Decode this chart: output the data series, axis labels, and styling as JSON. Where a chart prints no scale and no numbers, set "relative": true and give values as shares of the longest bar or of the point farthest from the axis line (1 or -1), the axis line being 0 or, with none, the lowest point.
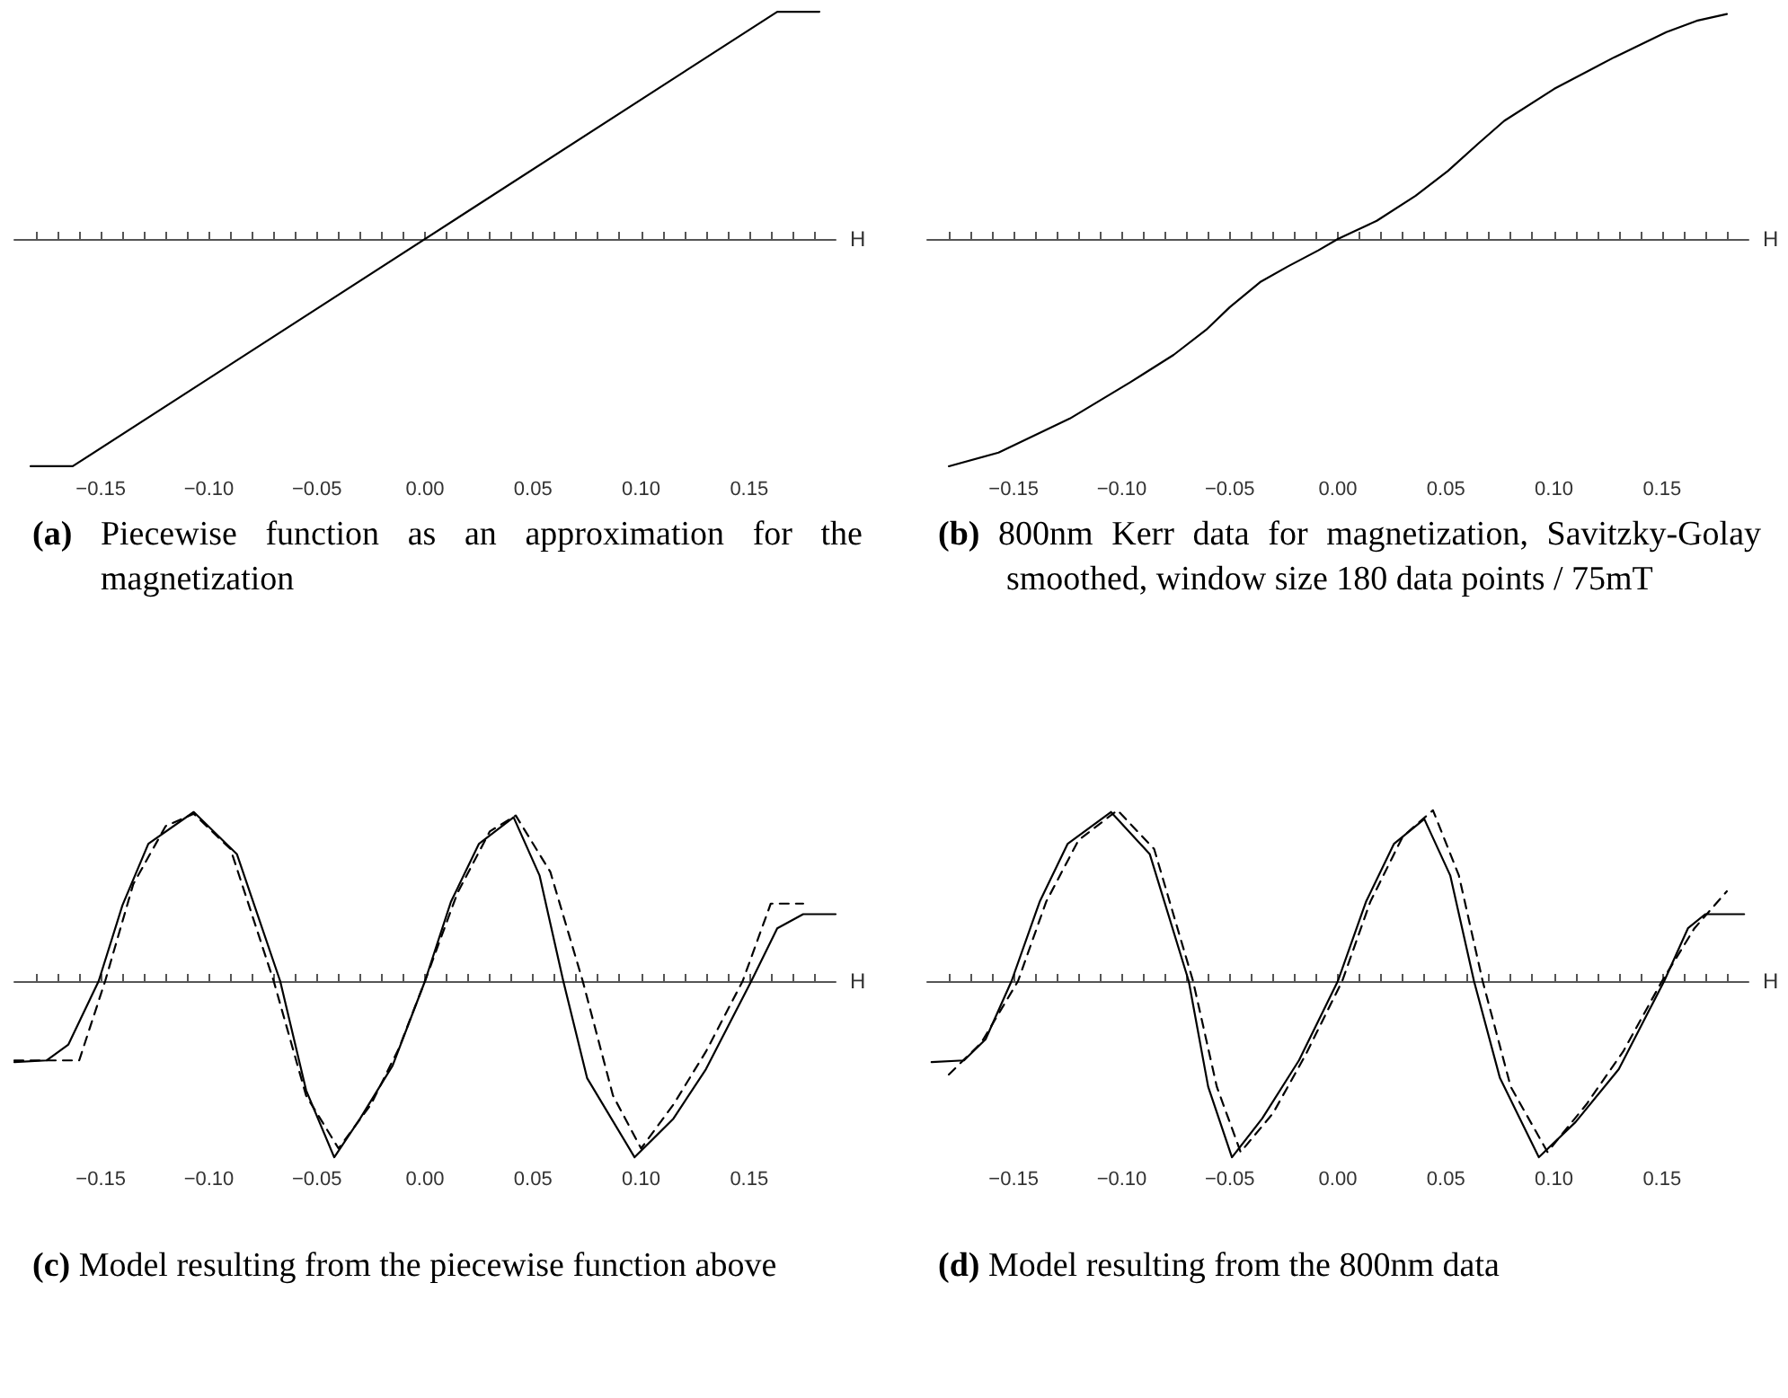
{
  "chart_data": [
    {
      "type": "line",
      "title": "(a) Piecewise function as an approximation for the magnetization",
      "xlabel": "H",
      "relative": true,
      "marker": "none",
      "xlim": [
        -0.19,
        0.19
      ],
      "xticks": [
        {
          "value": -0.18,
          "label": null
        },
        {
          "value": -0.17,
          "label": null
        },
        {
          "value": -0.16,
          "label": null
        },
        {
          "value": -0.15,
          "label": "−0.15"
        },
        {
          "value": -0.14,
          "label": null
        },
        {
          "value": -0.13,
          "label": null
        },
        {
          "value": -0.12,
          "label": null
        },
        {
          "value": -0.11,
          "label": null
        },
        {
          "value": -0.1,
          "label": "−0.10"
        },
        {
          "value": -0.09,
          "label": null
        },
        {
          "value": -0.08,
          "label": null
        },
        {
          "value": -0.07,
          "label": null
        },
        {
          "value": -0.06,
          "label": null
        },
        {
          "value": -0.05,
          "label": "−0.05"
        },
        {
          "value": -0.04,
          "label": null
        },
        {
          "value": -0.03,
          "label": null
        },
        {
          "value": -0.02,
          "label": null
        },
        {
          "value": -0.01,
          "label": null
        },
        {
          "value": 0,
          "label": "0.00"
        },
        {
          "value": 0.01,
          "label": null
        },
        {
          "value": 0.02,
          "label": null
        },
        {
          "value": 0.03,
          "label": null
        },
        {
          "value": 0.04,
          "label": null
        },
        {
          "value": 0.05,
          "label": "0.05"
        },
        {
          "value": 0.06,
          "label": null
        },
        {
          "value": 0.07,
          "label": null
        },
        {
          "value": 0.08,
          "label": null
        },
        {
          "value": 0.09,
          "label": null
        },
        {
          "value": 0.1,
          "label": "0.10"
        },
        {
          "value": 0.11,
          "label": null
        },
        {
          "value": 0.12,
          "label": null
        },
        {
          "value": 0.13,
          "label": null
        },
        {
          "value": 0.14,
          "label": null
        },
        {
          "value": 0.15,
          "label": "0.15"
        },
        {
          "value": 0.16,
          "label": null
        },
        {
          "value": 0.17,
          "label": null
        },
        {
          "value": 0.18,
          "label": null
        }
      ],
      "series": [
        {
          "color": "#000000",
          "line_style": "solid",
          "x": [
            -0.1825,
            -0.163,
            0.163,
            0.1825
          ],
          "values": [
            -1,
            -1,
            1,
            1
          ]
        }
      ]
    },
    {
      "type": "line",
      "title": "(b) 800nm Kerr data for magnetization, Savitzky-Golay smoothed, window size 180 data points / 75mT",
      "xlabel": "H",
      "relative": true,
      "marker": "none",
      "xlim": [
        -0.19,
        0.19
      ],
      "xticks": [
        {
          "value": -0.18,
          "label": null
        },
        {
          "value": -0.17,
          "label": null
        },
        {
          "value": -0.16,
          "label": null
        },
        {
          "value": -0.15,
          "label": "−0.15"
        },
        {
          "value": -0.14,
          "label": null
        },
        {
          "value": -0.13,
          "label": null
        },
        {
          "value": -0.12,
          "label": null
        },
        {
          "value": -0.11,
          "label": null
        },
        {
          "value": -0.1,
          "label": "−0.10"
        },
        {
          "value": -0.09,
          "label": null
        },
        {
          "value": -0.08,
          "label": null
        },
        {
          "value": -0.07,
          "label": null
        },
        {
          "value": -0.06,
          "label": null
        },
        {
          "value": -0.05,
          "label": "−0.05"
        },
        {
          "value": -0.04,
          "label": null
        },
        {
          "value": -0.03,
          "label": null
        },
        {
          "value": -0.02,
          "label": null
        },
        {
          "value": -0.01,
          "label": null
        },
        {
          "value": 0,
          "label": "0.00"
        },
        {
          "value": 0.01,
          "label": null
        },
        {
          "value": 0.02,
          "label": null
        },
        {
          "value": 0.03,
          "label": null
        },
        {
          "value": 0.04,
          "label": null
        },
        {
          "value": 0.05,
          "label": "0.05"
        },
        {
          "value": 0.06,
          "label": null
        },
        {
          "value": 0.07,
          "label": null
        },
        {
          "value": 0.08,
          "label": null
        },
        {
          "value": 0.09,
          "label": null
        },
        {
          "value": 0.1,
          "label": "0.10"
        },
        {
          "value": 0.11,
          "label": null
        },
        {
          "value": 0.12,
          "label": null
        },
        {
          "value": 0.13,
          "label": null
        },
        {
          "value": 0.14,
          "label": null
        },
        {
          "value": 0.15,
          "label": "0.15"
        },
        {
          "value": 0.16,
          "label": null
        },
        {
          "value": 0.17,
          "label": null
        },
        {
          "value": 0.18,
          "label": null
        }
      ],
      "series": [
        {
          "color": "#000000",
          "line_style": "solid",
          "x": [
            -0.18,
            -0.157,
            -0.124,
            -0.096,
            -0.076,
            -0.061,
            -0.05,
            -0.036,
            -0.023,
            -0.009,
            0,
            0.018,
            0.036,
            0.051,
            0.065,
            0.077,
            0.1,
            0.128,
            0.152,
            0.166,
            0.18
          ],
          "values": [
            -1,
            -0.94,
            -0.79,
            -0.63,
            -0.51,
            -0.4,
            -0.3,
            -0.19,
            -0.12,
            -0.05,
            0,
            0.08,
            0.19,
            0.3,
            0.42,
            0.52,
            0.66,
            0.8,
            0.91,
            0.96,
            0.99
          ]
        }
      ]
    },
    {
      "type": "line",
      "title": "(c) Model resulting from the piecewise function above",
      "xlabel": "H",
      "relative": true,
      "marker": "none",
      "xlim": [
        -0.19,
        0.19
      ],
      "xticks": [
        {
          "value": -0.18,
          "label": null
        },
        {
          "value": -0.17,
          "label": null
        },
        {
          "value": -0.16,
          "label": null
        },
        {
          "value": -0.15,
          "label": "−0.15"
        },
        {
          "value": -0.14,
          "label": null
        },
        {
          "value": -0.13,
          "label": null
        },
        {
          "value": -0.12,
          "label": null
        },
        {
          "value": -0.11,
          "label": null
        },
        {
          "value": -0.1,
          "label": "−0.10"
        },
        {
          "value": -0.09,
          "label": null
        },
        {
          "value": -0.08,
          "label": null
        },
        {
          "value": -0.07,
          "label": null
        },
        {
          "value": -0.06,
          "label": null
        },
        {
          "value": -0.05,
          "label": "−0.05"
        },
        {
          "value": -0.04,
          "label": null
        },
        {
          "value": -0.03,
          "label": null
        },
        {
          "value": -0.02,
          "label": null
        },
        {
          "value": -0.01,
          "label": null
        },
        {
          "value": 0,
          "label": "0.00"
        },
        {
          "value": 0.01,
          "label": null
        },
        {
          "value": 0.02,
          "label": null
        },
        {
          "value": 0.03,
          "label": null
        },
        {
          "value": 0.04,
          "label": null
        },
        {
          "value": 0.05,
          "label": "0.05"
        },
        {
          "value": 0.06,
          "label": null
        },
        {
          "value": 0.07,
          "label": null
        },
        {
          "value": 0.08,
          "label": null
        },
        {
          "value": 0.09,
          "label": null
        },
        {
          "value": 0.1,
          "label": "0.10"
        },
        {
          "value": 0.11,
          "label": null
        },
        {
          "value": 0.12,
          "label": null
        },
        {
          "value": 0.13,
          "label": null
        },
        {
          "value": 0.14,
          "label": null
        },
        {
          "value": 0.15,
          "label": "0.15"
        },
        {
          "value": 0.16,
          "label": null
        },
        {
          "value": 0.17,
          "label": null
        },
        {
          "value": 0.18,
          "label": null
        }
      ],
      "series": [
        {
          "color": "#000000",
          "line_style": "solid",
          "x": [
            -0.19,
            -0.175,
            -0.165,
            -0.151,
            -0.14,
            -0.128,
            -0.107,
            -0.087,
            -0.067,
            -0.055,
            -0.042,
            -0.03,
            -0.015,
            0,
            0.012,
            0.025,
            0.041,
            0.053,
            0.064,
            0.075,
            0.097,
            0.115,
            0.13,
            0.151,
            0.163,
            0.175,
            0.19
          ],
          "values": [
            -0.46,
            -0.45,
            -0.36,
            0,
            0.43,
            0.78,
            0.96,
            0.72,
            0,
            -0.62,
            -1,
            -0.78,
            -0.48,
            0,
            0.45,
            0.78,
            0.93,
            0.6,
            0,
            -0.55,
            -1,
            -0.78,
            -0.5,
            0,
            0.3,
            0.38,
            0.38
          ]
        },
        {
          "color": "#000000",
          "line_style": "dashed",
          "x": [
            -0.19,
            -0.16,
            -0.148,
            -0.135,
            -0.12,
            -0.107,
            -0.09,
            -0.07,
            -0.055,
            -0.04,
            -0.025,
            -0.012,
            0,
            0.015,
            0.03,
            0.042,
            0.058,
            0.073,
            0.087,
            0.1,
            0.115,
            0.13,
            0.147,
            0.16,
            0.175
          ],
          "values": [
            -0.45,
            -0.45,
            0,
            0.55,
            0.88,
            0.95,
            0.75,
            0,
            -0.65,
            -0.95,
            -0.7,
            -0.38,
            0,
            0.5,
            0.85,
            0.94,
            0.62,
            0,
            -0.65,
            -0.95,
            -0.7,
            -0.4,
            0,
            0.44,
            0.44
          ]
        }
      ]
    },
    {
      "type": "line",
      "title": "(d) Model resulting from the 800nm data",
      "xlabel": "H",
      "relative": true,
      "marker": "none",
      "xlim": [
        -0.19,
        0.19
      ],
      "xticks": [
        {
          "value": -0.18,
          "label": null
        },
        {
          "value": -0.17,
          "label": null
        },
        {
          "value": -0.16,
          "label": null
        },
        {
          "value": -0.15,
          "label": "−0.15"
        },
        {
          "value": -0.14,
          "label": null
        },
        {
          "value": -0.13,
          "label": null
        },
        {
          "value": -0.12,
          "label": null
        },
        {
          "value": -0.11,
          "label": null
        },
        {
          "value": -0.1,
          "label": "−0.10"
        },
        {
          "value": -0.09,
          "label": null
        },
        {
          "value": -0.08,
          "label": null
        },
        {
          "value": -0.07,
          "label": null
        },
        {
          "value": -0.06,
          "label": null
        },
        {
          "value": -0.05,
          "label": "−0.05"
        },
        {
          "value": -0.04,
          "label": null
        },
        {
          "value": -0.03,
          "label": null
        },
        {
          "value": -0.02,
          "label": null
        },
        {
          "value": -0.01,
          "label": null
        },
        {
          "value": 0,
          "label": "0.00"
        },
        {
          "value": 0.01,
          "label": null
        },
        {
          "value": 0.02,
          "label": null
        },
        {
          "value": 0.03,
          "label": null
        },
        {
          "value": 0.04,
          "label": null
        },
        {
          "value": 0.05,
          "label": "0.05"
        },
        {
          "value": 0.06,
          "label": null
        },
        {
          "value": 0.07,
          "label": null
        },
        {
          "value": 0.08,
          "label": null
        },
        {
          "value": 0.09,
          "label": null
        },
        {
          "value": 0.1,
          "label": "0.10"
        },
        {
          "value": 0.11,
          "label": null
        },
        {
          "value": 0.12,
          "label": null
        },
        {
          "value": 0.13,
          "label": null
        },
        {
          "value": 0.14,
          "label": null
        },
        {
          "value": 0.15,
          "label": "0.15"
        },
        {
          "value": 0.16,
          "label": null
        },
        {
          "value": 0.17,
          "label": null
        },
        {
          "value": 0.18,
          "label": null
        }
      ],
      "series": [
        {
          "color": "#000000",
          "line_style": "solid",
          "x": [
            -0.188,
            -0.173,
            -0.163,
            -0.151,
            -0.138,
            -0.125,
            -0.105,
            -0.087,
            -0.069,
            -0.06,
            -0.049,
            -0.035,
            -0.018,
            0,
            0.013,
            0.026,
            0.04,
            0.052,
            0.063,
            0.075,
            0.093,
            0.11,
            0.13,
            0.151,
            0.162,
            0.17,
            0.188
          ],
          "values": [
            -0.46,
            -0.45,
            -0.33,
            0,
            0.45,
            0.78,
            0.96,
            0.72,
            0,
            -0.6,
            -1,
            -0.78,
            -0.45,
            0,
            0.45,
            0.78,
            0.92,
            0.6,
            0,
            -0.55,
            -1,
            -0.8,
            -0.5,
            0,
            0.3,
            0.38,
            0.38
          ]
        },
        {
          "color": "#000000",
          "line_style": "dashed",
          "x": [
            -0.18,
            -0.165,
            -0.148,
            -0.135,
            -0.12,
            -0.102,
            -0.085,
            -0.067,
            -0.056,
            -0.045,
            -0.03,
            -0.015,
            0.002,
            0.015,
            0.03,
            0.044,
            0.056,
            0.067,
            0.08,
            0.097,
            0.115,
            0.132,
            0.15,
            0.165,
            0.18
          ],
          "values": [
            -0.53,
            -0.35,
            0,
            0.45,
            0.8,
            0.97,
            0.75,
            0,
            -0.6,
            -0.97,
            -0.75,
            -0.42,
            0,
            0.45,
            0.82,
            0.97,
            0.6,
            0,
            -0.6,
            -0.97,
            -0.7,
            -0.4,
            0,
            0.3,
            0.51
          ]
        }
      ]
    }
  ]
}
